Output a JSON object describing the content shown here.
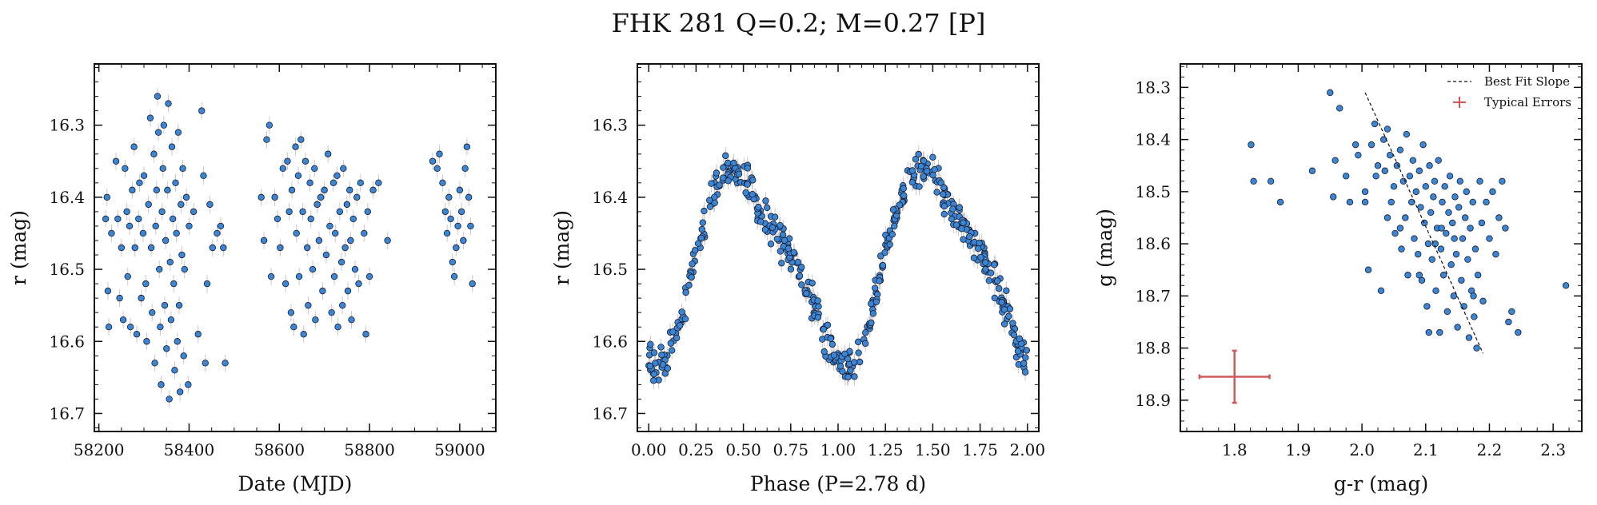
{
  "figure": {
    "title": "FHK 281  Q=0.2; M=0.27 [P]"
  },
  "chart_data": [
    {
      "type": "scatter",
      "name": "light-curve",
      "xlabel": "Date (MJD)",
      "ylabel": "r (mag)",
      "xlim": [
        58190,
        59080
      ],
      "ylim": [
        16.725,
        16.215
      ],
      "y_inverted": true,
      "xticks": [
        58200,
        58400,
        58600,
        58800,
        59000
      ],
      "xtick_labels": [
        "58200",
        "58400",
        "58600",
        "58800",
        "59000"
      ],
      "yticks": [
        16.3,
        16.4,
        16.5,
        16.6,
        16.7
      ],
      "ytick_labels": [
        "16.3",
        "16.4",
        "16.5",
        "16.6",
        "16.7"
      ],
      "marker_color": "#3a86d4",
      "marker_edge": "#1a1a2e",
      "errorbar_color": "#c8c8c8",
      "points": [
        [
          58215,
          16.43
        ],
        [
          58218,
          16.4
        ],
        [
          58220,
          16.53
        ],
        [
          58222,
          16.58
        ],
        [
          58228,
          16.45
        ],
        [
          58238,
          16.35
        ],
        [
          58242,
          16.43
        ],
        [
          58246,
          16.54
        ],
        [
          58250,
          16.47
        ],
        [
          58254,
          16.57
        ],
        [
          58258,
          16.36
        ],
        [
          58262,
          16.42
        ],
        [
          58264,
          16.51
        ],
        [
          58268,
          16.44
        ],
        [
          58270,
          16.58
        ],
        [
          58274,
          16.39
        ],
        [
          58278,
          16.33
        ],
        [
          58280,
          16.47
        ],
        [
          58284,
          16.59
        ],
        [
          58288,
          16.43
        ],
        [
          58290,
          16.38
        ],
        [
          58294,
          16.54
        ],
        [
          58298,
          16.45
        ],
        [
          58300,
          16.37
        ],
        [
          58304,
          16.52
        ],
        [
          58306,
          16.6
        ],
        [
          58310,
          16.41
        ],
        [
          58314,
          16.29
        ],
        [
          58316,
          16.47
        ],
        [
          58318,
          16.56
        ],
        [
          58322,
          16.34
        ],
        [
          58324,
          16.63
        ],
        [
          58326,
          16.44
        ],
        [
          58328,
          16.39
        ],
        [
          58330,
          16.26
        ],
        [
          58332,
          16.31
        ],
        [
          58334,
          16.5
        ],
        [
          58336,
          16.58
        ],
        [
          58338,
          16.66
        ],
        [
          58340,
          16.42
        ],
        [
          58342,
          16.36
        ],
        [
          58344,
          16.3
        ],
        [
          58346,
          16.55
        ],
        [
          58348,
          16.46
        ],
        [
          58350,
          16.61
        ],
        [
          58352,
          16.39
        ],
        [
          58354,
          16.27
        ],
        [
          58356,
          16.68
        ],
        [
          58358,
          16.49
        ],
        [
          58360,
          16.57
        ],
        [
          58362,
          16.33
        ],
        [
          58364,
          16.43
        ],
        [
          58366,
          16.52
        ],
        [
          58368,
          16.64
        ],
        [
          58370,
          16.38
        ],
        [
          58372,
          16.45
        ],
        [
          58374,
          16.6
        ],
        [
          58376,
          16.31
        ],
        [
          58378,
          16.55
        ],
        [
          58380,
          16.67
        ],
        [
          58382,
          16.41
        ],
        [
          58384,
          16.48
        ],
        [
          58386,
          16.36
        ],
        [
          58388,
          16.62
        ],
        [
          58390,
          16.5
        ],
        [
          58394,
          16.4
        ],
        [
          58398,
          16.66
        ],
        [
          58400,
          16.44
        ],
        [
          58410,
          16.42
        ],
        [
          58420,
          16.59
        ],
        [
          58428,
          16.28
        ],
        [
          58432,
          16.37
        ],
        [
          58436,
          16.63
        ],
        [
          58440,
          16.52
        ],
        [
          58446,
          16.41
        ],
        [
          58452,
          16.47
        ],
        [
          58462,
          16.45
        ],
        [
          58470,
          16.44
        ],
        [
          58476,
          16.47
        ],
        [
          58480,
          16.63
        ],
        [
          58560,
          16.4
        ],
        [
          58566,
          16.46
        ],
        [
          58572,
          16.32
        ],
        [
          58578,
          16.3
        ],
        [
          58582,
          16.51
        ],
        [
          58590,
          16.4
        ],
        [
          58596,
          16.43
        ],
        [
          58602,
          16.47
        ],
        [
          58608,
          16.36
        ],
        [
          58614,
          16.52
        ],
        [
          58618,
          16.35
        ],
        [
          58622,
          16.42
        ],
        [
          58626,
          16.56
        ],
        [
          58628,
          16.39
        ],
        [
          58632,
          16.58
        ],
        [
          58636,
          16.33
        ],
        [
          58638,
          16.45
        ],
        [
          58642,
          16.37
        ],
        [
          58644,
          16.51
        ],
        [
          58648,
          16.32
        ],
        [
          58652,
          16.42
        ],
        [
          58654,
          16.59
        ],
        [
          58658,
          16.35
        ],
        [
          58662,
          16.47
        ],
        [
          58664,
          16.55
        ],
        [
          58668,
          16.38
        ],
        [
          58670,
          16.43
        ],
        [
          58674,
          16.5
        ],
        [
          58678,
          16.36
        ],
        [
          58680,
          16.57
        ],
        [
          58684,
          16.41
        ],
        [
          58688,
          16.46
        ],
        [
          58692,
          16.4
        ],
        [
          58696,
          16.53
        ],
        [
          58700,
          16.39
        ],
        [
          58704,
          16.48
        ],
        [
          58708,
          16.34
        ],
        [
          58712,
          16.44
        ],
        [
          58716,
          16.56
        ],
        [
          58720,
          16.38
        ],
        [
          58722,
          16.51
        ],
        [
          58724,
          16.45
        ],
        [
          58728,
          16.37
        ],
        [
          58730,
          16.58
        ],
        [
          58734,
          16.42
        ],
        [
          58738,
          16.49
        ],
        [
          58740,
          16.55
        ],
        [
          58742,
          16.36
        ],
        [
          58746,
          16.47
        ],
        [
          58750,
          16.41
        ],
        [
          58752,
          16.53
        ],
        [
          58756,
          16.39
        ],
        [
          58758,
          16.46
        ],
        [
          58760,
          16.57
        ],
        [
          58764,
          16.43
        ],
        [
          58768,
          16.5
        ],
        [
          58772,
          16.4
        ],
        [
          58776,
          16.52
        ],
        [
          58780,
          16.38
        ],
        [
          58788,
          16.45
        ],
        [
          58792,
          16.59
        ],
        [
          58796,
          16.42
        ],
        [
          58800,
          16.51
        ],
        [
          58808,
          16.39
        ],
        [
          58820,
          16.38
        ],
        [
          58840,
          16.46
        ],
        [
          58940,
          16.35
        ],
        [
          58950,
          16.36
        ],
        [
          58955,
          16.34
        ],
        [
          58962,
          16.38
        ],
        [
          58968,
          16.42
        ],
        [
          58972,
          16.45
        ],
        [
          58976,
          16.4
        ],
        [
          58980,
          16.43
        ],
        [
          58984,
          16.49
        ],
        [
          58988,
          16.51
        ],
        [
          58992,
          16.47
        ],
        [
          58996,
          16.44
        ],
        [
          59000,
          16.39
        ],
        [
          59004,
          16.42
        ],
        [
          59008,
          16.46
        ],
        [
          59012,
          16.36
        ],
        [
          59016,
          16.33
        ],
        [
          59020,
          16.4
        ],
        [
          59024,
          16.44
        ],
        [
          59028,
          16.52
        ]
      ]
    },
    {
      "type": "scatter",
      "name": "phase-folded",
      "xlabel": "Phase (P=2.78 d)",
      "ylabel": "r (mag)",
      "xlim": [
        -0.06,
        2.06
      ],
      "ylim": [
        16.725,
        16.215
      ],
      "y_inverted": true,
      "xticks": [
        0,
        0.25,
        0.5,
        0.75,
        1.0,
        1.25,
        1.5,
        1.75,
        2.0
      ],
      "xtick_labels": [
        "0.00",
        "0.25",
        "0.50",
        "0.75",
        "1.00",
        "1.25",
        "1.50",
        "1.75",
        "2.00"
      ],
      "yticks": [
        16.3,
        16.4,
        16.5,
        16.6,
        16.7
      ],
      "ytick_labels": [
        "16.3",
        "16.4",
        "16.5",
        "16.6",
        "16.7"
      ],
      "curve_model": {
        "mean": 16.49,
        "amplitude": 0.14,
        "period_in_phase": 1.0,
        "minimum_phase": 0.0,
        "second_min": 0.58,
        "second_max_depth": 0.05
      },
      "n_points_per_cycle": 230,
      "scatter_mag": 0.04,
      "marker_color": "#3a86d4",
      "marker_edge": "#1a1a2e",
      "errorbar_color": "#c8c8c8"
    },
    {
      "type": "scatter",
      "name": "color-magnitude",
      "xlabel": "g-r (mag)",
      "ylabel": "g (mag)",
      "xlim": [
        1.715,
        2.345
      ],
      "ylim": [
        18.96,
        18.255
      ],
      "y_inverted": true,
      "xticks": [
        1.8,
        1.9,
        2.0,
        2.1,
        2.2,
        2.3
      ],
      "xtick_labels": [
        "1.8",
        "1.9",
        "2.0",
        "2.1",
        "2.2",
        "2.3"
      ],
      "yticks": [
        18.3,
        18.4,
        18.5,
        18.6,
        18.7,
        18.8,
        18.9
      ],
      "ytick_labels": [
        "18.3",
        "18.4",
        "18.5",
        "18.6",
        "18.7",
        "18.8",
        "18.9"
      ],
      "marker_color": "#3a86d4",
      "marker_edge": "#1a1a2e",
      "best_fit": {
        "label": "Best Fit Slope",
        "x": [
          2.005,
          2.19
        ],
        "y": [
          18.31,
          18.81
        ]
      },
      "typical_errors": {
        "label": "Typical Errors",
        "color": "#d05a5a",
        "x": 1.8,
        "y": 18.855,
        "xerr": 0.055,
        "yerr": 0.05
      },
      "points": [
        [
          1.826,
          18.41
        ],
        [
          1.83,
          18.48
        ],
        [
          1.857,
          18.48
        ],
        [
          1.872,
          18.52
        ],
        [
          1.922,
          18.46
        ],
        [
          1.95,
          18.31
        ],
        [
          1.955,
          18.51
        ],
        [
          1.958,
          18.44
        ],
        [
          1.965,
          18.34
        ],
        [
          1.975,
          18.47
        ],
        [
          1.981,
          18.52
        ],
        [
          1.99,
          18.41
        ],
        [
          1.994,
          18.43
        ],
        [
          2.005,
          18.52
        ],
        [
          2.01,
          18.65
        ],
        [
          2.015,
          18.41
        ],
        [
          2.02,
          18.37
        ],
        [
          2.022,
          18.47
        ],
        [
          2.025,
          18.45
        ],
        [
          2.03,
          18.69
        ],
        [
          2.034,
          18.4
        ],
        [
          2.036,
          18.46
        ],
        [
          2.04,
          18.38
        ],
        [
          2.044,
          18.43
        ],
        [
          2.046,
          18.52
        ],
        [
          2.05,
          18.49
        ],
        [
          2.052,
          18.58
        ],
        [
          2.055,
          18.45
        ],
        [
          2.06,
          18.42
        ],
        [
          2.062,
          18.61
        ],
        [
          2.065,
          18.48
        ],
        [
          2.068,
          18.55
        ],
        [
          2.07,
          18.39
        ],
        [
          2.072,
          18.66
        ],
        [
          2.075,
          18.47
        ],
        [
          2.078,
          18.52
        ],
        [
          2.08,
          18.44
        ],
        [
          2.082,
          18.59
        ],
        [
          2.085,
          18.5
        ],
        [
          2.088,
          18.62
        ],
        [
          2.09,
          18.46
        ],
        [
          2.092,
          18.53
        ],
        [
          2.094,
          18.67
        ],
        [
          2.096,
          18.41
        ],
        [
          2.098,
          18.56
        ],
        [
          2.1,
          18.49
        ],
        [
          2.102,
          18.72
        ],
        [
          2.104,
          18.6
        ],
        [
          2.106,
          18.45
        ],
        [
          2.108,
          18.54
        ],
        [
          2.11,
          18.63
        ],
        [
          2.112,
          18.51
        ],
        [
          2.114,
          18.48
        ],
        [
          2.116,
          18.69
        ],
        [
          2.118,
          18.57
        ],
        [
          2.12,
          18.44
        ],
        [
          2.122,
          18.77
        ],
        [
          2.124,
          18.61
        ],
        [
          2.126,
          18.52
        ],
        [
          2.128,
          18.66
        ],
        [
          2.13,
          18.49
        ],
        [
          2.132,
          18.58
        ],
        [
          2.134,
          18.73
        ],
        [
          2.136,
          18.54
        ],
        [
          2.138,
          18.47
        ],
        [
          2.14,
          18.64
        ],
        [
          2.142,
          18.56
        ],
        [
          2.144,
          18.7
        ],
        [
          2.146,
          18.51
        ],
        [
          2.148,
          18.62
        ],
        [
          2.15,
          18.76
        ],
        [
          2.152,
          18.53
        ],
        [
          2.154,
          18.48
        ],
        [
          2.156,
          18.67
        ],
        [
          2.158,
          18.59
        ],
        [
          2.16,
          18.72
        ],
        [
          2.162,
          18.55
        ],
        [
          2.164,
          18.5
        ],
        [
          2.166,
          18.63
        ],
        [
          2.168,
          18.78
        ],
        [
          2.17,
          18.57
        ],
        [
          2.172,
          18.69
        ],
        [
          2.174,
          18.52
        ],
        [
          2.176,
          18.74
        ],
        [
          2.178,
          18.61
        ],
        [
          2.18,
          18.8
        ],
        [
          2.182,
          18.66
        ],
        [
          2.185,
          18.48
        ],
        [
          2.188,
          18.56
        ],
        [
          2.19,
          18.71
        ],
        [
          2.195,
          18.52
        ],
        [
          2.2,
          18.59
        ],
        [
          2.205,
          18.5
        ],
        [
          2.21,
          18.62
        ],
        [
          2.215,
          18.55
        ],
        [
          2.22,
          18.48
        ],
        [
          2.225,
          18.57
        ],
        [
          2.23,
          18.75
        ],
        [
          2.235,
          18.73
        ],
        [
          2.245,
          18.77
        ],
        [
          2.06,
          18.57
        ],
        [
          2.04,
          18.55
        ],
        [
          2.005,
          18.5
        ],
        [
          2.115,
          18.6
        ],
        [
          2.09,
          18.66
        ],
        [
          2.125,
          18.57
        ],
        [
          2.145,
          18.59
        ],
        [
          2.105,
          18.77
        ],
        [
          2.175,
          18.7
        ],
        [
          2.32,
          18.68
        ]
      ]
    }
  ]
}
